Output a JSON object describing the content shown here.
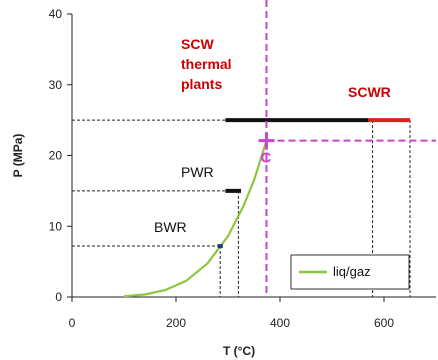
{
  "chart_data": {
    "type": "line",
    "xlabel": "T (°C)",
    "ylabel": "P (MPa)",
    "xlim": [
      0,
      700
    ],
    "ylim": [
      0,
      40
    ],
    "x_ticks": [
      0,
      200,
      400,
      600
    ],
    "y_ticks": [
      0,
      10,
      20,
      30,
      40
    ],
    "series": [
      {
        "name": "liq/gaz",
        "color": "#8dc63f",
        "x": [
          100,
          140,
          180,
          220,
          260,
          300,
          330,
          350,
          374
        ],
        "y": [
          0.1,
          0.36,
          1.0,
          2.3,
          4.7,
          8.6,
          12.9,
          16.5,
          22.1
        ]
      }
    ],
    "legend": {
      "position": "bottom-right",
      "entries": [
        "liq/gaz"
      ]
    },
    "critical_point": {
      "label": "C",
      "x": 374,
      "y": 22.1,
      "color": "#cc44cc"
    },
    "operating_ranges": [
      {
        "label": "BWR",
        "x_start": 280,
        "x_end": 290,
        "pressure": 7.2,
        "color": "#1f3a93"
      },
      {
        "label": "PWR",
        "x_start": 295,
        "x_end": 325,
        "pressure": 15,
        "color": "#111111"
      },
      {
        "label": "",
        "x_start": 295,
        "x_end": 570,
        "pressure": 25,
        "color": "#111111"
      },
      {
        "label": "",
        "x_start": 570,
        "x_end": 650,
        "pressure": 25,
        "color": "#e02020"
      }
    ],
    "region_labels": [
      {
        "text": [
          "SCW",
          "thermal",
          "plants"
        ],
        "color": "#cc0000"
      },
      {
        "text": [
          "SCWR"
        ],
        "color": "#cc0000"
      }
    ],
    "guide_lines": [
      {
        "type": "horizontal",
        "y": 7.2,
        "x_end": 285
      },
      {
        "type": "horizontal",
        "y": 15,
        "x_end": 310
      },
      {
        "type": "horizontal",
        "y": 25,
        "x_end": 300
      },
      {
        "type": "vertical",
        "x": 285,
        "y_end": 7.2
      },
      {
        "type": "vertical",
        "x": 320,
        "y_end": 15
      },
      {
        "type": "vertical",
        "x": 578,
        "y_end": 25
      },
      {
        "type": "vertical",
        "x": 650,
        "y_end": 25
      }
    ]
  }
}
